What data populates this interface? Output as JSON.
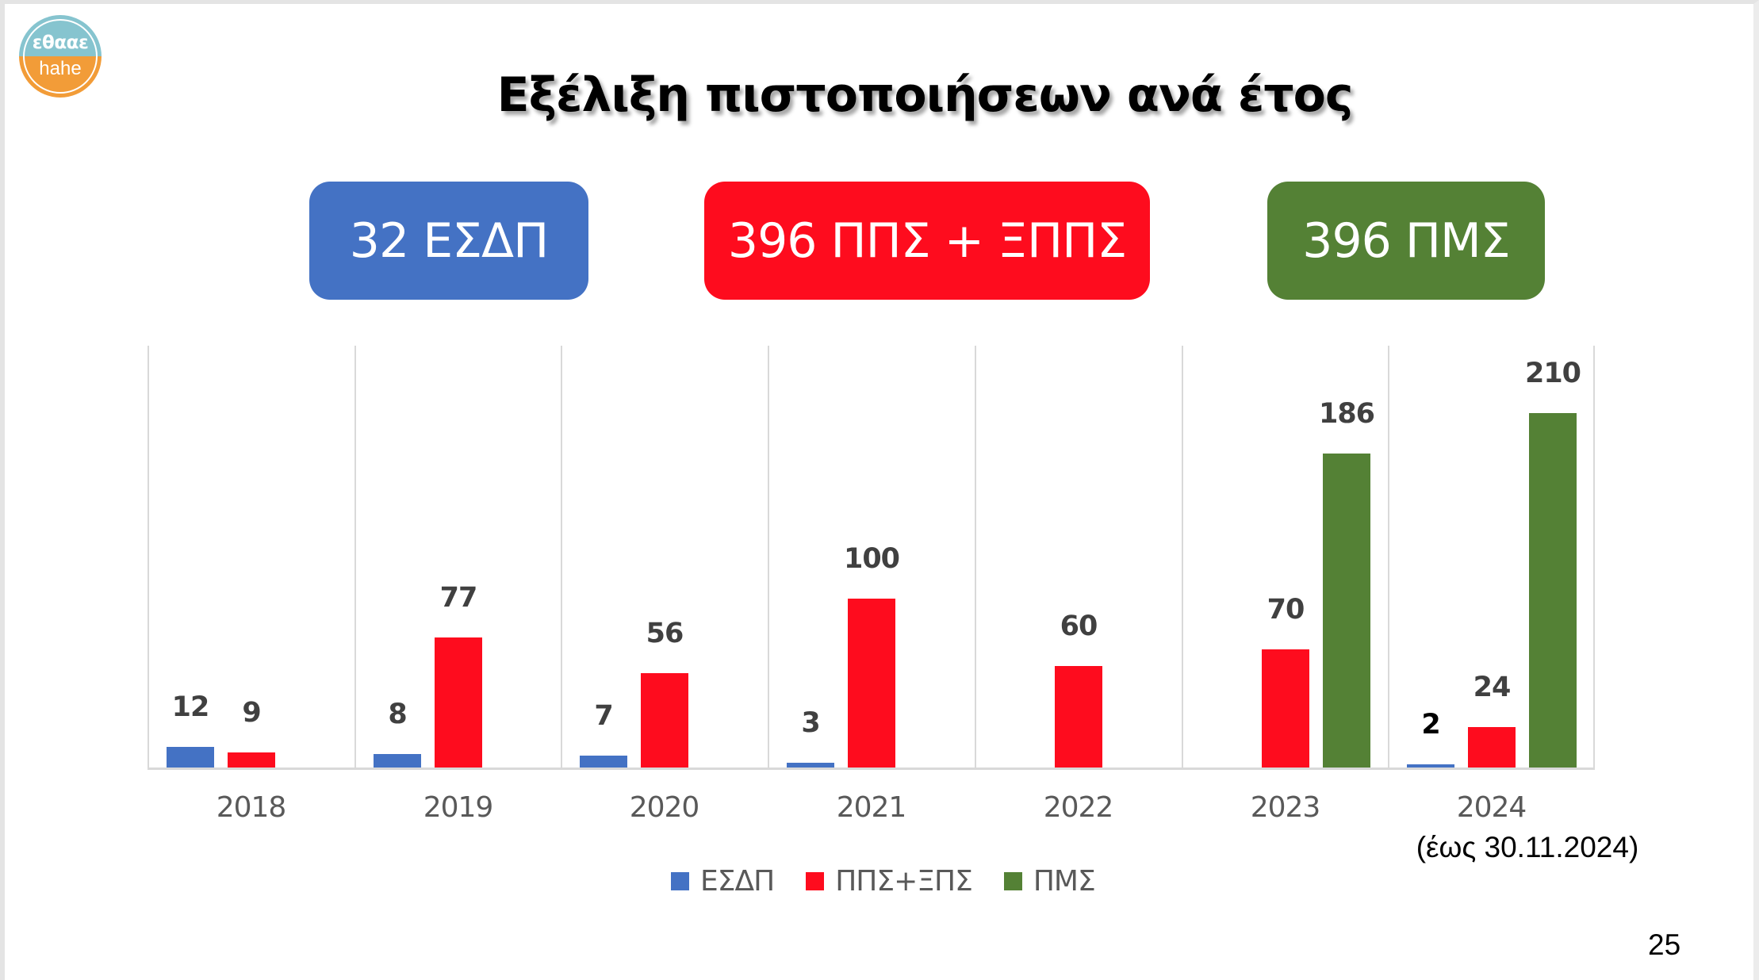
{
  "logo": {
    "line1": "εθααε",
    "line2": "hahe",
    "colors": {
      "top": "#86c4cf",
      "bottom": "#f29c38"
    }
  },
  "title": "Εξέλιξη πιστοποιήσεων ανά έτος",
  "summary_boxes": [
    {
      "label": "32 ΕΣΔΠ",
      "color": "#4472c4"
    },
    {
      "label": "396 ΠΠΣ + ΞΠΠΣ",
      "color": "#fe0c1e"
    },
    {
      "label": "396 ΠΜΣ",
      "color": "#548135"
    }
  ],
  "chart_data": {
    "type": "bar",
    "title": "Εξέλιξη πιστοποιήσεων ανά έτος",
    "categories": [
      "2018",
      "2019",
      "2020",
      "2021",
      "2022",
      "2023",
      "2024"
    ],
    "category_note": {
      "2024": "(έως 30.11.2024)"
    },
    "series": [
      {
        "name": "ΕΣΔΠ",
        "color": "#4472c4",
        "values": [
          12,
          8,
          7,
          3,
          0,
          0,
          2
        ],
        "labels": [
          "12",
          "8",
          "7",
          "3",
          "",
          "",
          "2"
        ]
      },
      {
        "name": "ΠΠΣ+ΞΠΣ",
        "color": "#fe0c1e",
        "values": [
          9,
          77,
          56,
          100,
          60,
          70,
          24
        ],
        "labels": [
          "9",
          "77",
          "56",
          "100",
          "60",
          "70",
          "24"
        ]
      },
      {
        "name": "ΠΜΣ",
        "color": "#548135",
        "values": [
          0,
          0,
          0,
          0,
          0,
          186,
          210
        ],
        "labels": [
          "",
          "",
          "",
          "",
          "",
          "186",
          "210"
        ]
      }
    ],
    "xlabel": "",
    "ylabel": "",
    "ylim": [
      0,
      250
    ],
    "grid": "vertical category separators only",
    "legend_position": "bottom",
    "data_labels": true
  },
  "legend": [
    {
      "label": "ΕΣΔΠ",
      "color": "#4472c4"
    },
    {
      "label": "ΠΠΣ+ΞΠΣ",
      "color": "#fe0c1e"
    },
    {
      "label": "ΠΜΣ",
      "color": "#548135"
    }
  ],
  "x_sublabel": "(έως 30.11.2024)",
  "page_number": "25"
}
